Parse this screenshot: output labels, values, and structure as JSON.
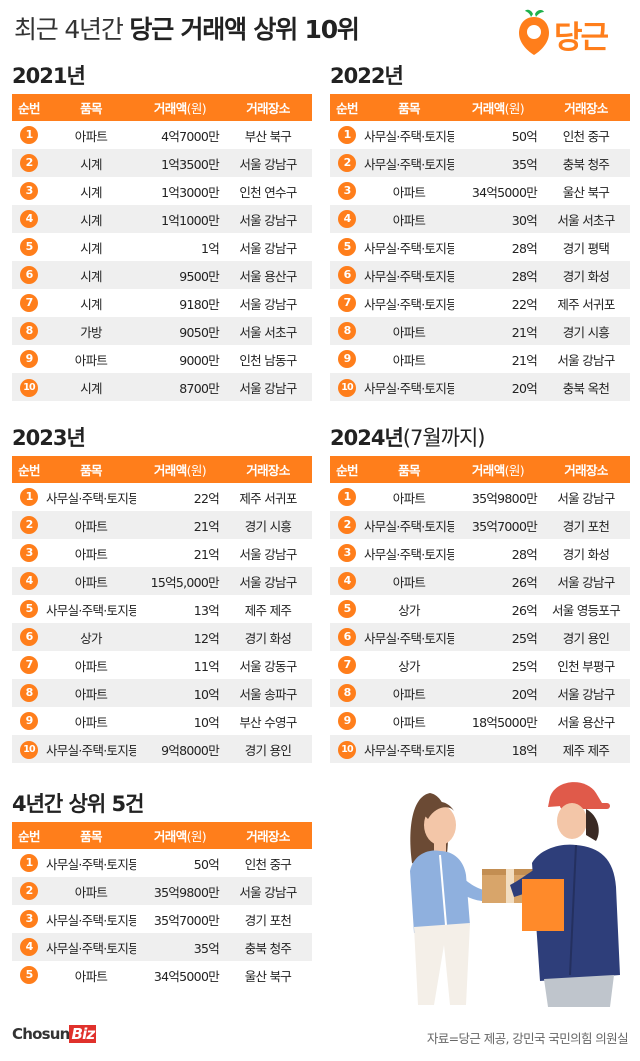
{
  "page_title": {
    "light": "최근 4년간 ",
    "bold": "당근 거래액 상위 10위"
  },
  "brand": {
    "logo_text": "당근",
    "accent": "#ff7e1b"
  },
  "headers": {
    "rank": "순번",
    "item": "품목",
    "amount": "거래액",
    "unit": "(원)",
    "location": "거래장소"
  },
  "chart_data": [
    {
      "type": "table",
      "title": "2021년",
      "title_suffix": "",
      "columns": [
        "순번",
        "품목",
        "거래액(원)",
        "거래장소"
      ],
      "rows": [
        {
          "rank": "1",
          "item": "아파트",
          "amount": "4억7000만",
          "location": "부산 북구"
        },
        {
          "rank": "2",
          "item": "시계",
          "amount": "1억3500만",
          "location": "서울 강남구"
        },
        {
          "rank": "3",
          "item": "시계",
          "amount": "1억3000만",
          "location": "인천 연수구"
        },
        {
          "rank": "4",
          "item": "시계",
          "amount": "1억1000만",
          "location": "서울 강남구"
        },
        {
          "rank": "5",
          "item": "시계",
          "amount": "1억",
          "location": "서울 강남구"
        },
        {
          "rank": "6",
          "item": "시계",
          "amount": "9500만",
          "location": "서울 용산구"
        },
        {
          "rank": "7",
          "item": "시계",
          "amount": "9180만",
          "location": "서울 강남구"
        },
        {
          "rank": "8",
          "item": "가방",
          "amount": "9050만",
          "location": "서울 서초구"
        },
        {
          "rank": "9",
          "item": "아파트",
          "amount": "9000만",
          "location": "인천 남동구"
        },
        {
          "rank": "10",
          "item": "시계",
          "amount": "8700만",
          "location": "서울 강남구"
        }
      ]
    },
    {
      "type": "table",
      "title": "2022년",
      "title_suffix": "",
      "columns": [
        "순번",
        "품목",
        "거래액(원)",
        "거래장소"
      ],
      "rows": [
        {
          "rank": "1",
          "item": "사무실·주택·토지등",
          "amount": "50억",
          "location": "인천 중구"
        },
        {
          "rank": "2",
          "item": "사무실·주택·토지등",
          "amount": "35억",
          "location": "충북 청주"
        },
        {
          "rank": "3",
          "item": "아파트",
          "amount": "34억5000만",
          "location": "울산 북구"
        },
        {
          "rank": "4",
          "item": "아파트",
          "amount": "30억",
          "location": "서울 서초구"
        },
        {
          "rank": "5",
          "item": "사무실·주택·토지등",
          "amount": "28억",
          "location": "경기 평택"
        },
        {
          "rank": "6",
          "item": "사무실·주택·토지등",
          "amount": "28억",
          "location": "경기 화성"
        },
        {
          "rank": "7",
          "item": "사무실·주택·토지등",
          "amount": "22억",
          "location": "제주 서귀포"
        },
        {
          "rank": "8",
          "item": "아파트",
          "amount": "21억",
          "location": "경기 시흥"
        },
        {
          "rank": "9",
          "item": "아파트",
          "amount": "21억",
          "location": "서울 강남구"
        },
        {
          "rank": "10",
          "item": "사무실·주택·토지등",
          "amount": "20억",
          "location": "충북 옥천"
        }
      ]
    },
    {
      "type": "table",
      "title": "2023년",
      "title_suffix": "",
      "columns": [
        "순번",
        "품목",
        "거래액(원)",
        "거래장소"
      ],
      "rows": [
        {
          "rank": "1",
          "item": "사무실·주택·토지등",
          "amount": "22억",
          "location": "제주 서귀포"
        },
        {
          "rank": "2",
          "item": "아파트",
          "amount": "21억",
          "location": "경기 시흥"
        },
        {
          "rank": "3",
          "item": "아파트",
          "amount": "21억",
          "location": "서울 강남구"
        },
        {
          "rank": "4",
          "item": "아파트",
          "amount": "15억5,000만",
          "location": "서울 강남구"
        },
        {
          "rank": "5",
          "item": "사무실·주택·토지등",
          "amount": "13억",
          "location": "제주 제주"
        },
        {
          "rank": "6",
          "item": "상가",
          "amount": "12억",
          "location": "경기 화성"
        },
        {
          "rank": "7",
          "item": "아파트",
          "amount": "11억",
          "location": "서울 강동구"
        },
        {
          "rank": "8",
          "item": "아파트",
          "amount": "10억",
          "location": "서울 송파구"
        },
        {
          "rank": "9",
          "item": "아파트",
          "amount": "10억",
          "location": "부산 수영구"
        },
        {
          "rank": "10",
          "item": "사무실·주택·토지등",
          "amount": "9억8000만",
          "location": "경기 용인"
        }
      ]
    },
    {
      "type": "table",
      "title": "2024년",
      "title_suffix": "(7월까지)",
      "columns": [
        "순번",
        "품목",
        "거래액(원)",
        "거래장소"
      ],
      "rows": [
        {
          "rank": "1",
          "item": "아파트",
          "amount": "35억9800만",
          "location": "서울 강남구"
        },
        {
          "rank": "2",
          "item": "사무실·주택·토지등",
          "amount": "35억7000만",
          "location": "경기 포천"
        },
        {
          "rank": "3",
          "item": "사무실·주택·토지등",
          "amount": "28억",
          "location": "경기 화성"
        },
        {
          "rank": "4",
          "item": "아파트",
          "amount": "26억",
          "location": "서울 강남구"
        },
        {
          "rank": "5",
          "item": "상가",
          "amount": "26억",
          "location": "서울 영등포구"
        },
        {
          "rank": "6",
          "item": "사무실·주택·토지등",
          "amount": "25억",
          "location": "경기 용인"
        },
        {
          "rank": "7",
          "item": "상가",
          "amount": "25억",
          "location": "인천 부평구"
        },
        {
          "rank": "8",
          "item": "아파트",
          "amount": "20억",
          "location": "서울 강남구"
        },
        {
          "rank": "9",
          "item": "아파트",
          "amount": "18억5000만",
          "location": "서울 용산구"
        },
        {
          "rank": "10",
          "item": "사무실·주택·토지등",
          "amount": "18억",
          "location": "제주 제주"
        }
      ]
    },
    {
      "type": "table",
      "title": "4년간 상위 5건",
      "title_suffix": "",
      "columns": [
        "순번",
        "품목",
        "거래액(원)",
        "거래장소"
      ],
      "rows": [
        {
          "rank": "1",
          "item": "사무실·주택·토지등",
          "amount": "50억",
          "location": "인천 중구"
        },
        {
          "rank": "2",
          "item": "아파트",
          "amount": "35억9800만",
          "location": "서울 강남구"
        },
        {
          "rank": "3",
          "item": "사무실·주택·토지등",
          "amount": "35억7000만",
          "location": "경기 포천"
        },
        {
          "rank": "4",
          "item": "사무실·주택·토지등",
          "amount": "35억",
          "location": "충북 청주"
        },
        {
          "rank": "5",
          "item": "아파트",
          "amount": "34억5000만",
          "location": "울산 북구"
        }
      ]
    }
  ],
  "footer": {
    "logo_main": "Chosun",
    "logo_biz": "Biz",
    "source": "자료=당근 제공, 강민국 국민의힘 의원실"
  }
}
